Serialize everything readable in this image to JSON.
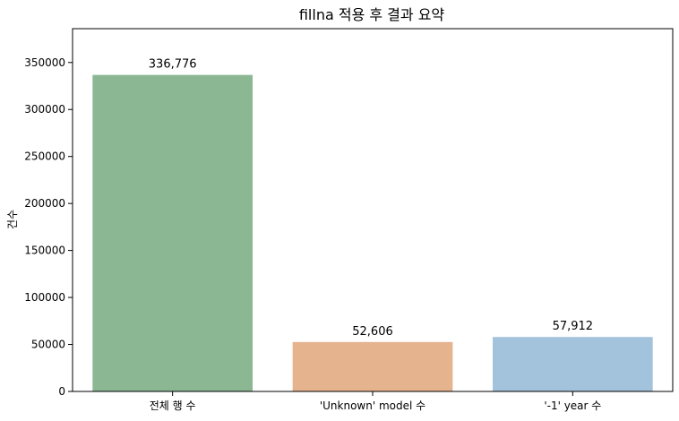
{
  "chart_data": {
    "type": "bar",
    "title": "fillna 적용 후 결과 요약",
    "xlabel": "",
    "ylabel": "건수",
    "categories": [
      "전체 행 수",
      "'Unknown' model 수",
      "'-1' year 수"
    ],
    "values": [
      336776,
      52606,
      57912
    ],
    "value_labels": [
      "336,776",
      "52,606",
      "57,912"
    ],
    "colors": [
      "#8bb793",
      "#e6b38f",
      "#a3c2dc"
    ],
    "ylim": [
      0,
      386000
    ],
    "yticks": [
      0,
      50000,
      100000,
      150000,
      200000,
      250000,
      300000,
      350000
    ],
    "ytick_labels": [
      "0",
      "50000",
      "100000",
      "150000",
      "200000",
      "250000",
      "300000",
      "350000"
    ],
    "grid": false,
    "legend": "none"
  }
}
